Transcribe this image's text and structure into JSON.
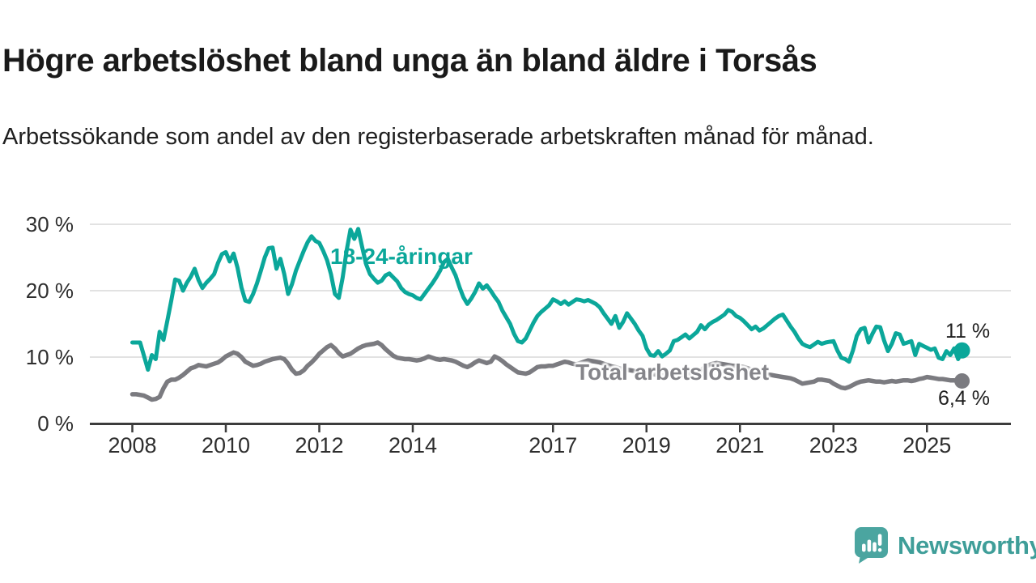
{
  "header": {
    "title": "Högre arbetslöshet bland unga än bland äldre i Torsås",
    "subtitle": "Arbetssökande som andel av den registerbaserade arbetskraften månad för månad."
  },
  "chart_data": {
    "type": "line",
    "unit": "%",
    "grid": "horizontal",
    "x_start": "2008-01",
    "x_end": "2025-10",
    "x_ticks": [
      2008,
      2010,
      2012,
      2014,
      2017,
      2019,
      2021,
      2023,
      2025
    ],
    "y_ticks": [
      0,
      10,
      20,
      30
    ],
    "y_tick_labels": [
      "0 %",
      "10 %",
      "20 %",
      "30 %"
    ],
    "ylim": [
      0,
      31
    ],
    "series": [
      {
        "name": "18-24-åringar",
        "color": "#0ba79a",
        "end_label": "11 %",
        "values": [
          12.2,
          12.2,
          12.2,
          10.2,
          8.1,
          10.3,
          9.7,
          13.8,
          12.6,
          15.5,
          18.5,
          21.7,
          21.5,
          20.0,
          21.2,
          22.1,
          23.3,
          21.6,
          20.4,
          21.2,
          21.8,
          22.5,
          24.2,
          25.5,
          25.8,
          24.4,
          25.6,
          23.5,
          20.5,
          18.5,
          18.3,
          19.5,
          21.1,
          23.0,
          25.0,
          26.4,
          26.5,
          23.3,
          24.8,
          22.5,
          19.5,
          21.0,
          23.0,
          24.5,
          26.0,
          27.3,
          28.2,
          27.5,
          27.2,
          26.0,
          24.6,
          22.5,
          19.5,
          18.9,
          22.0,
          26.0,
          29.2,
          27.8,
          29.3,
          26.6,
          24.0,
          22.5,
          21.8,
          21.2,
          21.5,
          22.3,
          22.6,
          22.0,
          21.4,
          20.4,
          19.8,
          19.5,
          19.3,
          18.9,
          18.7,
          19.5,
          20.3,
          21.1,
          22.0,
          23.0,
          24.3,
          24.8,
          23.5,
          22.3,
          20.5,
          19.0,
          18.0,
          18.8,
          19.8,
          21.1,
          20.3,
          20.8,
          20.0,
          19.1,
          18.3,
          17.0,
          16.0,
          15.0,
          13.5,
          12.4,
          12.2,
          12.8,
          14.0,
          15.2,
          16.2,
          16.8,
          17.3,
          17.8,
          18.7,
          18.4,
          18.0,
          18.4,
          17.9,
          18.3,
          18.7,
          18.6,
          18.4,
          18.6,
          18.3,
          18.0,
          17.5,
          16.6,
          15.8,
          15.0,
          16.2,
          14.4,
          15.3,
          16.6,
          15.8,
          15.0,
          14.0,
          13.2,
          11.3,
          10.3,
          10.2,
          10.9,
          10.1,
          10.5,
          11.0,
          12.4,
          12.6,
          13.0,
          13.4,
          12.8,
          13.3,
          13.8,
          14.8,
          14.2,
          14.9,
          15.3,
          15.6,
          16.0,
          16.4,
          17.1,
          16.8,
          16.2,
          15.9,
          15.4,
          14.8,
          14.2,
          14.6,
          14.0,
          14.3,
          14.8,
          15.3,
          15.8,
          16.2,
          16.4,
          15.5,
          14.6,
          13.8,
          12.8,
          12.0,
          11.7,
          11.5,
          11.9,
          12.3,
          12.0,
          12.2,
          12.3,
          12.4,
          11.0,
          9.9,
          9.7,
          9.3,
          11.0,
          13.2,
          14.2,
          14.4,
          12.2,
          13.5,
          14.6,
          14.5,
          12.5,
          10.9,
          12.0,
          13.6,
          13.4,
          12.0,
          12.2,
          12.4,
          10.3,
          12.0,
          11.7,
          11.4,
          11.1,
          11.3,
          9.9,
          9.7,
          10.9,
          10.3,
          11.3,
          9.7,
          11.0
        ]
      },
      {
        "name": "Total arbetslöshet",
        "color": "#7b7b80",
        "end_label": "6,4 %",
        "values": [
          4.4,
          4.4,
          4.3,
          4.2,
          3.9,
          3.6,
          3.7,
          4.0,
          5.3,
          6.3,
          6.6,
          6.6,
          6.9,
          7.3,
          7.8,
          8.3,
          8.5,
          8.8,
          8.7,
          8.6,
          8.8,
          9.0,
          9.2,
          9.6,
          10.1,
          10.4,
          10.7,
          10.5,
          10.0,
          9.3,
          9.0,
          8.7,
          8.8,
          9.0,
          9.3,
          9.5,
          9.7,
          9.8,
          9.9,
          9.7,
          9.0,
          8.1,
          7.5,
          7.6,
          8.0,
          8.7,
          9.2,
          9.8,
          10.5,
          11.0,
          11.5,
          11.8,
          11.3,
          10.6,
          10.1,
          10.3,
          10.5,
          10.9,
          11.3,
          11.6,
          11.8,
          11.9,
          12.0,
          12.2,
          11.8,
          11.2,
          10.7,
          10.2,
          9.9,
          9.8,
          9.7,
          9.7,
          9.6,
          9.5,
          9.6,
          9.8,
          10.1,
          9.9,
          9.7,
          9.6,
          9.7,
          9.6,
          9.5,
          9.3,
          9.0,
          8.7,
          8.5,
          8.8,
          9.2,
          9.5,
          9.3,
          9.1,
          9.3,
          10.1,
          9.8,
          9.4,
          8.9,
          8.5,
          8.1,
          7.7,
          7.6,
          7.5,
          7.7,
          8.1,
          8.5,
          8.6,
          8.6,
          8.7,
          8.7,
          8.9,
          9.1,
          9.3,
          9.2,
          9.0,
          8.9,
          9.1,
          9.3,
          9.5,
          9.4,
          9.3,
          9.2,
          9.0,
          8.8,
          8.6,
          8.5,
          8.3,
          8.2,
          8.1,
          8.0,
          7.9,
          7.8,
          7.7,
          7.6,
          7.5,
          7.4,
          7.3,
          7.2,
          7.3,
          7.4,
          7.4,
          7.3,
          7.3,
          7.4,
          7.5,
          7.6,
          7.7,
          8.0,
          8.5,
          8.8,
          9.0,
          9.1,
          9.0,
          8.9,
          8.8,
          8.7,
          8.7,
          8.6,
          8.5,
          8.3,
          8.1,
          7.9,
          7.7,
          7.5,
          7.4,
          7.3,
          7.2,
          7.1,
          7.0,
          6.9,
          6.8,
          6.6,
          6.3,
          6.0,
          6.1,
          6.2,
          6.3,
          6.6,
          6.6,
          6.5,
          6.4,
          6.0,
          5.7,
          5.4,
          5.3,
          5.5,
          5.8,
          6.1,
          6.3,
          6.4,
          6.5,
          6.4,
          6.3,
          6.3,
          6.2,
          6.3,
          6.4,
          6.3,
          6.4,
          6.5,
          6.5,
          6.4,
          6.5,
          6.7,
          6.8,
          7.0,
          6.9,
          6.8,
          6.7,
          6.7,
          6.6,
          6.5,
          6.5,
          6.4,
          6.4
        ]
      }
    ],
    "colors": {
      "grid": "#d9d9d9",
      "axis": "#3c3c3c",
      "tick_text": "#2e2e2e"
    }
  },
  "branding": {
    "name": "Newsworthy",
    "logo_icon": "bar-chart-speech-bubble-icon",
    "color": "#3f9e99",
    "icon_color": "#4ba5a0"
  }
}
